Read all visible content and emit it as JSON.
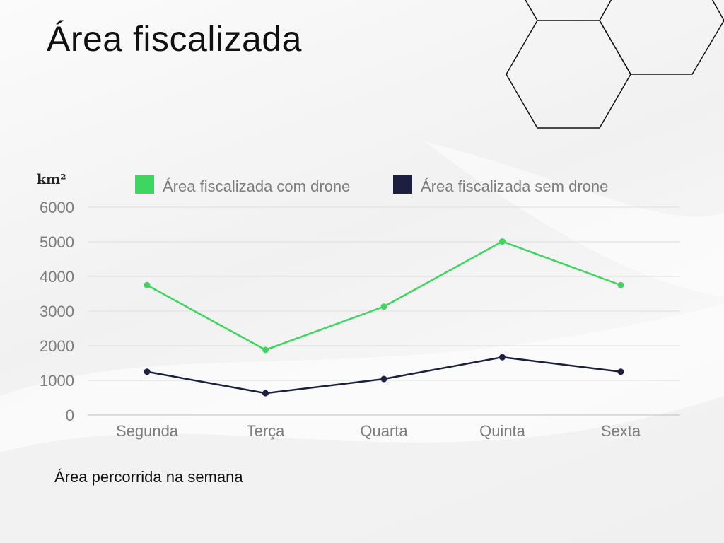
{
  "slide": {
    "title": "Área fiscalizada",
    "caption": "Área percorrida na semana"
  },
  "chart_data": {
    "type": "line",
    "unit_label": "km²",
    "categories": [
      "Segunda",
      "Terça",
      "Quarta",
      "Quinta",
      "Sexta"
    ],
    "series": [
      {
        "name": "Área fiscalizada com drone",
        "color": "#3dd65f",
        "values": [
          3750,
          1880,
          3130,
          5010,
          3750
        ]
      },
      {
        "name": "Área fiscalizada sem drone",
        "color": "#1c1f3f",
        "values": [
          1250,
          630,
          1040,
          1670,
          1250
        ]
      }
    ],
    "y_ticks": [
      "6000",
      "5000",
      "4000",
      "3000",
      "2000",
      "1000",
      "0"
    ],
    "ylim": [
      0,
      6000
    ],
    "grid": true,
    "legend_position": "top"
  }
}
